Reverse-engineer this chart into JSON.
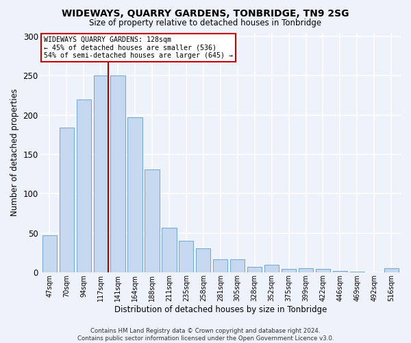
{
  "title": "WIDEWAYS, QUARRY GARDENS, TONBRIDGE, TN9 2SG",
  "subtitle": "Size of property relative to detached houses in Tonbridge",
  "xlabel": "Distribution of detached houses by size in Tonbridge",
  "ylabel": "Number of detached properties",
  "bar_color": "#c5d8f0",
  "bar_edge_color": "#6ea6d0",
  "vline_color": "#aa0000",
  "categories": [
    "47sqm",
    "70sqm",
    "94sqm",
    "117sqm",
    "141sqm",
    "164sqm",
    "188sqm",
    "211sqm",
    "235sqm",
    "258sqm",
    "281sqm",
    "305sqm",
    "328sqm",
    "352sqm",
    "375sqm",
    "399sqm",
    "422sqm",
    "446sqm",
    "469sqm",
    "492sqm",
    "516sqm"
  ],
  "values": [
    47,
    184,
    220,
    250,
    250,
    197,
    131,
    57,
    40,
    30,
    16,
    16,
    7,
    9,
    4,
    5,
    4,
    2,
    1,
    0,
    5
  ],
  "vline_x": 3.5,
  "ylim": [
    0,
    305
  ],
  "yticks": [
    0,
    50,
    100,
    150,
    200,
    250,
    300
  ],
  "annotation_title": "WIDEWAYS QUARRY GARDENS: 128sqm",
  "annotation_line1": "← 45% of detached houses are smaller (536)",
  "annotation_line2": "54% of semi-detached houses are larger (645) →",
  "footer_line1": "Contains HM Land Registry data © Crown copyright and database right 2024.",
  "footer_line2": "Contains public sector information licensed under the Open Government Licence v3.0.",
  "background_color": "#eef2fa",
  "grid_color": "#ffffff"
}
